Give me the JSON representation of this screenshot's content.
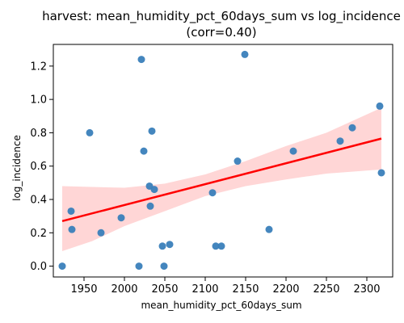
{
  "chart_data": {
    "type": "scatter",
    "title": "harvest: mean_humidity_pct_60days_sum vs log_incidence",
    "subtitle": "(corr=0.40)",
    "xlabel": "mean_humidity_pct_60days_sum",
    "ylabel": "log_incidence",
    "xlim": [
      1912,
      2332
    ],
    "ylim": [
      -0.065,
      1.33
    ],
    "xticks": [
      1950,
      2000,
      2050,
      2100,
      2150,
      2200,
      2250,
      2300
    ],
    "yticks": [
      0.0,
      0.2,
      0.4,
      0.6,
      0.8,
      1.0,
      1.2
    ],
    "grid": false,
    "points": [
      {
        "x": 1923,
        "y": 0.0
      },
      {
        "x": 1934,
        "y": 0.33
      },
      {
        "x": 1935,
        "y": 0.22
      },
      {
        "x": 1957,
        "y": 0.8
      },
      {
        "x": 1971,
        "y": 0.2
      },
      {
        "x": 1996,
        "y": 0.29
      },
      {
        "x": 2018,
        "y": 0.0
      },
      {
        "x": 2021,
        "y": 1.24
      },
      {
        "x": 2024,
        "y": 0.69
      },
      {
        "x": 2031,
        "y": 0.48
      },
      {
        "x": 2032,
        "y": 0.36
      },
      {
        "x": 2034,
        "y": 0.81
      },
      {
        "x": 2037,
        "y": 0.46
      },
      {
        "x": 2047,
        "y": 0.12
      },
      {
        "x": 2049,
        "y": 0.0
      },
      {
        "x": 2056,
        "y": 0.13
      },
      {
        "x": 2109,
        "y": 0.44
      },
      {
        "x": 2113,
        "y": 0.12
      },
      {
        "x": 2120,
        "y": 0.12
      },
      {
        "x": 2140,
        "y": 0.63
      },
      {
        "x": 2149,
        "y": 1.27
      },
      {
        "x": 2179,
        "y": 0.22
      },
      {
        "x": 2209,
        "y": 0.69
      },
      {
        "x": 2267,
        "y": 0.75
      },
      {
        "x": 2282,
        "y": 0.83
      },
      {
        "x": 2316,
        "y": 0.96
      },
      {
        "x": 2318,
        "y": 0.56
      }
    ],
    "regression": {
      "color": "#ff0000",
      "line": [
        [
          1923,
          0.27
        ],
        [
          2318,
          0.765
        ]
      ],
      "ci_upper": [
        [
          1923,
          0.48
        ],
        [
          1960,
          0.475
        ],
        [
          2000,
          0.47
        ],
        [
          2050,
          0.495
        ],
        [
          2100,
          0.55
        ],
        [
          2150,
          0.63
        ],
        [
          2200,
          0.72
        ],
        [
          2250,
          0.8
        ],
        [
          2318,
          0.95
        ]
      ],
      "ci_lower": [
        [
          1923,
          0.09
        ],
        [
          1960,
          0.15
        ],
        [
          2000,
          0.24
        ],
        [
          2050,
          0.33
        ],
        [
          2100,
          0.42
        ],
        [
          2150,
          0.48
        ],
        [
          2200,
          0.52
        ],
        [
          2250,
          0.555
        ],
        [
          2318,
          0.58
        ]
      ]
    },
    "colors": {
      "points": "#3a7fba",
      "band": "#ffd6d6"
    }
  }
}
